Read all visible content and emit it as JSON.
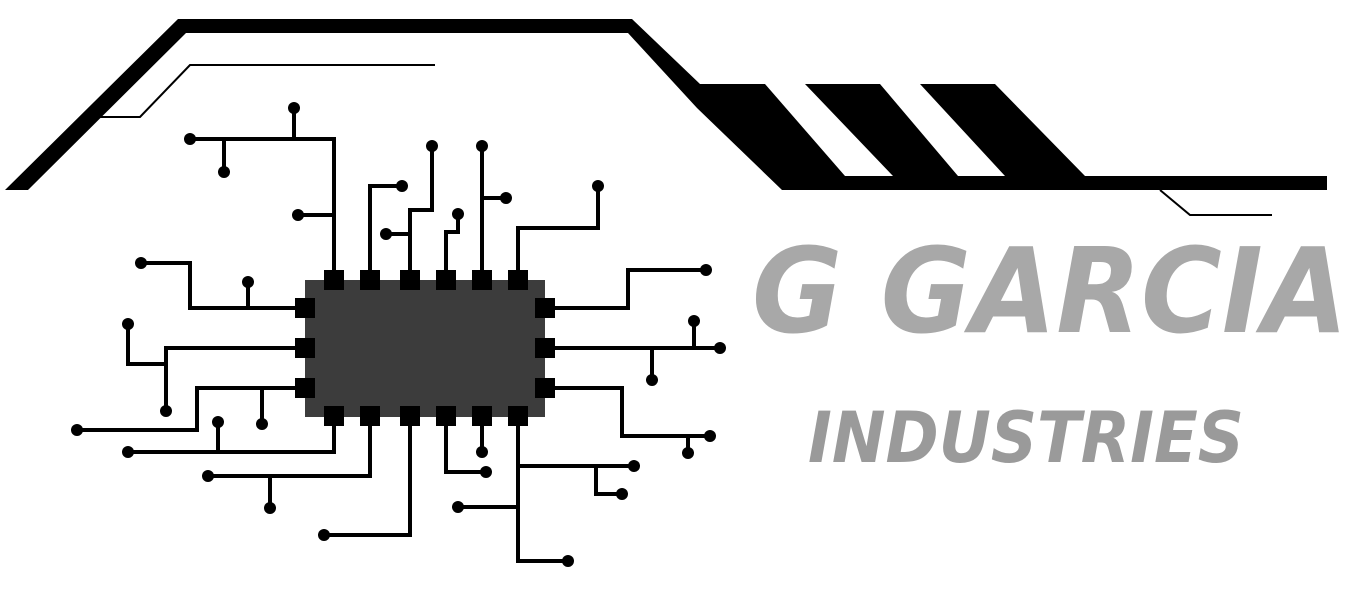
{
  "logo": {
    "title": "G GARCIA",
    "subtitle": "INDUSTRIES",
    "title_color": "#a8a8a8",
    "subtitle_color": "#9a9a9a",
    "line_color": "#000000",
    "chip_color": "#3c3c3c"
  }
}
